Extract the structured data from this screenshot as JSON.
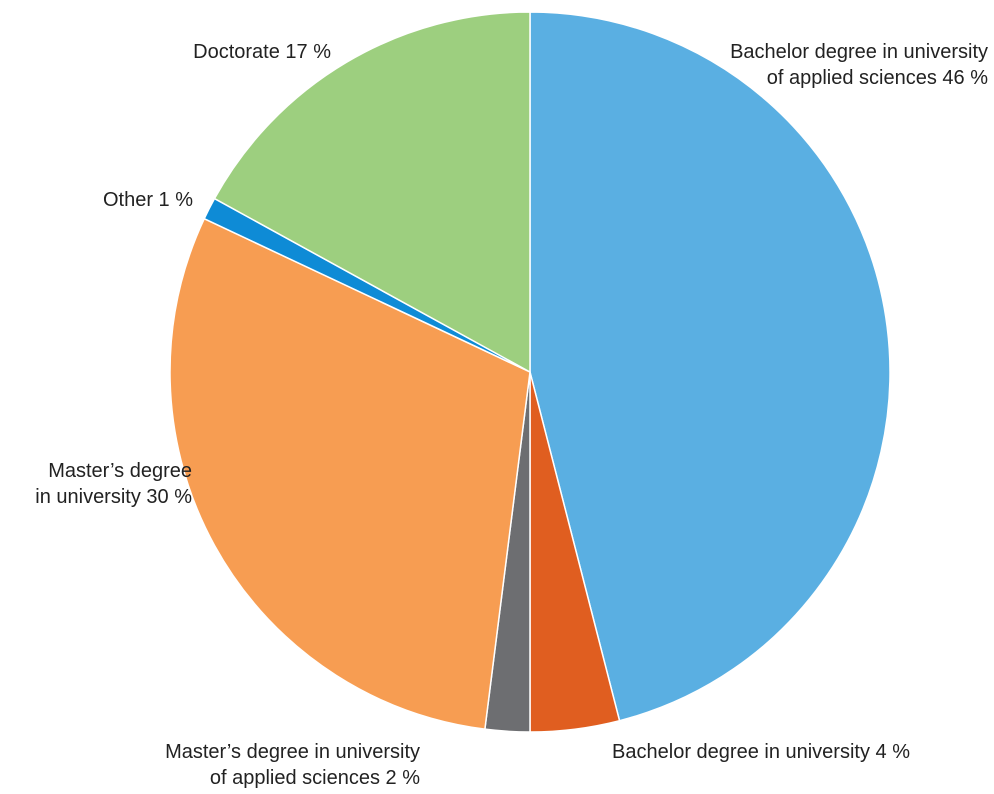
{
  "chart_data": {
    "type": "pie",
    "title": "",
    "start_angle_deg": 0,
    "direction": "clockwise",
    "slices": [
      {
        "name": "Bachelor degree in university of applied sciences",
        "value": 46,
        "label_lines": [
          "Bachelor degree in university",
          "of applied sciences 46 %"
        ],
        "color": "#5aafe2"
      },
      {
        "name": "Bachelor degree in university",
        "value": 4,
        "label_lines": [
          "Bachelor degree in university 4 %"
        ],
        "color": "#e05e20"
      },
      {
        "name": "Master's degree in university of applied sciences",
        "value": 2,
        "label_lines": [
          "Master’s degree in university",
          "of applied sciences 2 %"
        ],
        "color": "#6d6e71"
      },
      {
        "name": "Master's degree in university",
        "value": 30,
        "label_lines": [
          "Master’s degree",
          "in university 30 %"
        ],
        "color": "#f79d52"
      },
      {
        "name": "Other",
        "value": 1,
        "label_lines": [
          "Other 1 %"
        ],
        "color": "#0e8bd6"
      },
      {
        "name": "Doctorate",
        "value": 17,
        "label_lines": [
          "Doctorate 17 %"
        ],
        "color": "#9dcf7f"
      }
    ]
  }
}
